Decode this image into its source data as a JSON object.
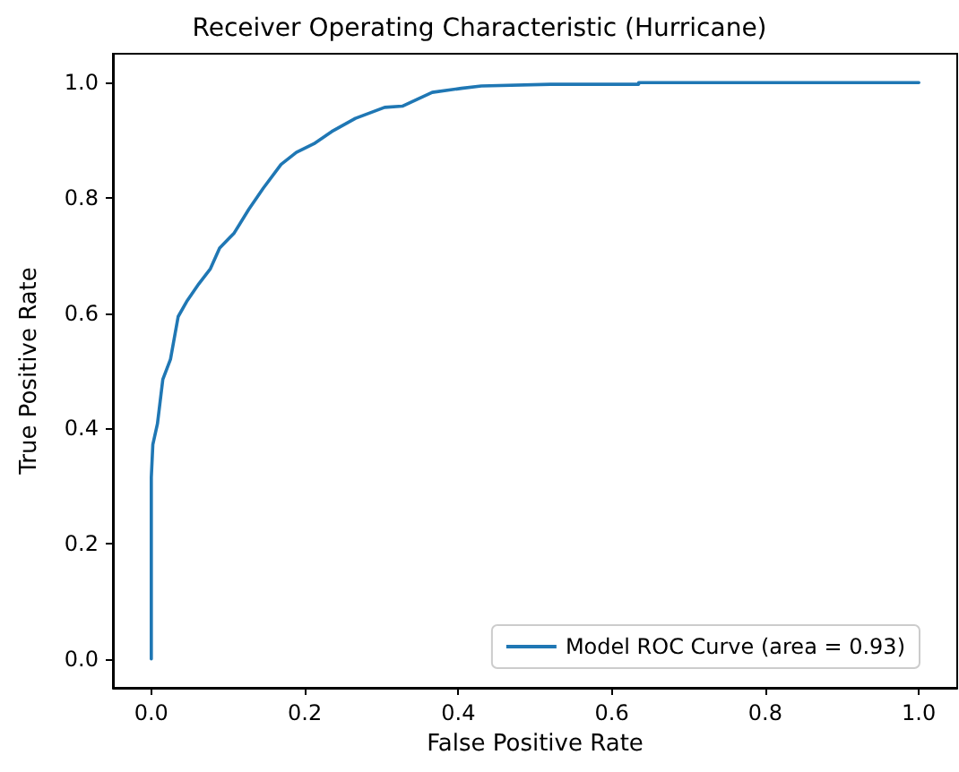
{
  "chart_data": {
    "type": "line",
    "title": "Receiver Operating Characteristic (Hurricane)",
    "xlabel": "False Positive Rate",
    "ylabel": "True Positive Rate",
    "xlim": [
      -0.05,
      1.05
    ],
    "ylim": [
      -0.05,
      1.05
    ],
    "xticks": [
      {
        "value": 0,
        "label": "0.0"
      },
      {
        "value": 0.2,
        "label": "0.2"
      },
      {
        "value": 0.4,
        "label": "0.4"
      },
      {
        "value": 0.6,
        "label": "0.6"
      },
      {
        "value": 0.8,
        "label": "0.8"
      },
      {
        "value": 1,
        "label": "1.0"
      }
    ],
    "yticks": [
      {
        "value": 0,
        "label": "0.0"
      },
      {
        "value": 0.2,
        "label": "0.2"
      },
      {
        "value": 0.4,
        "label": "0.4"
      },
      {
        "value": 0.6,
        "label": "0.6"
      },
      {
        "value": 0.8,
        "label": "0.8"
      },
      {
        "value": 1,
        "label": "1.0"
      }
    ],
    "legend": "bottom right",
    "marker": "none",
    "line_style": "solid",
    "series": [
      {
        "name": "Model ROC Curve (area = 0.93)",
        "color": "#1f77b4",
        "x": [
          0,
          0,
          0.002,
          0.008,
          0.015,
          0.025,
          0.035,
          0.046,
          0.062,
          0.077,
          0.089,
          0.108,
          0.127,
          0.146,
          0.169,
          0.189,
          0.212,
          0.235,
          0.266,
          0.304,
          0.327,
          0.366,
          0.404,
          0.43,
          0.52,
          0.635,
          0.635,
          1.0
        ],
        "values": [
          0,
          0.315,
          0.372,
          0.408,
          0.485,
          0.52,
          0.594,
          0.62,
          0.651,
          0.677,
          0.713,
          0.739,
          0.78,
          0.817,
          0.858,
          0.879,
          0.894,
          0.915,
          0.938,
          0.957,
          0.959,
          0.983,
          0.99,
          0.994,
          0.997,
          0.997,
          1.0,
          1.0
        ]
      }
    ]
  }
}
